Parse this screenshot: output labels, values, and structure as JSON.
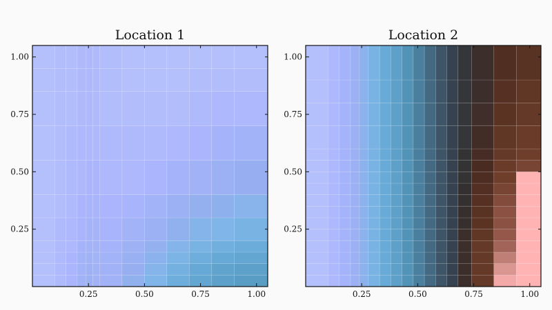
{
  "chart_data": [
    {
      "type": "heatmap",
      "title": "Location 1",
      "xlabel": "",
      "ylabel": "",
      "xlim": [
        0,
        1.05
      ],
      "ylim": [
        0,
        1.05
      ],
      "xticks": [
        "0.25",
        "0.50",
        "0.75",
        "1.00"
      ],
      "yticks": [
        "0.25",
        "0.50",
        "0.75",
        "1.00"
      ],
      "x_edges": [
        0,
        0.1,
        0.15,
        0.2,
        0.24,
        0.27,
        0.3,
        0.4,
        0.5,
        0.6,
        0.7,
        0.8,
        0.9,
        1.05
      ],
      "y_edges": [
        0,
        0.05,
        0.1,
        0.15,
        0.2,
        0.3,
        0.4,
        0.55,
        0.7,
        0.85,
        0.95,
        1.05
      ],
      "values": [
        [
          0.02,
          0.04,
          0.06,
          0.1,
          0.12,
          0.1,
          0.1,
          0.16,
          0.22,
          0.28,
          0.33,
          0.36,
          0.38
        ],
        [
          0.02,
          0.04,
          0.06,
          0.09,
          0.11,
          0.1,
          0.1,
          0.14,
          0.2,
          0.26,
          0.31,
          0.34,
          0.36
        ],
        [
          0.02,
          0.04,
          0.06,
          0.09,
          0.1,
          0.09,
          0.09,
          0.13,
          0.18,
          0.23,
          0.28,
          0.31,
          0.33
        ],
        [
          0.02,
          0.04,
          0.05,
          0.08,
          0.09,
          0.09,
          0.08,
          0.11,
          0.15,
          0.2,
          0.24,
          0.27,
          0.29
        ],
        [
          0.02,
          0.04,
          0.05,
          0.07,
          0.08,
          0.08,
          0.07,
          0.09,
          0.12,
          0.16,
          0.2,
          0.22,
          0.24
        ],
        [
          0.02,
          0.03,
          0.04,
          0.06,
          0.07,
          0.07,
          0.06,
          0.07,
          0.09,
          0.12,
          0.15,
          0.17,
          0.19
        ],
        [
          0.02,
          0.03,
          0.04,
          0.05,
          0.06,
          0.06,
          0.05,
          0.05,
          0.06,
          0.08,
          0.1,
          0.12,
          0.14
        ],
        [
          0.02,
          0.03,
          0.04,
          0.05,
          0.05,
          0.05,
          0.04,
          0.04,
          0.04,
          0.05,
          0.06,
          0.08,
          0.09
        ],
        [
          0.02,
          0.03,
          0.03,
          0.04,
          0.05,
          0.04,
          0.03,
          0.03,
          0.03,
          0.03,
          0.04,
          0.05,
          0.05
        ],
        [
          0.02,
          0.03,
          0.03,
          0.04,
          0.05,
          0.04,
          0.03,
          0.02,
          0.02,
          0.02,
          0.03,
          0.03,
          0.03
        ],
        [
          0.02,
          0.03,
          0.03,
          0.04,
          0.05,
          0.04,
          0.03,
          0.02,
          0.02,
          0.02,
          0.02,
          0.02,
          0.02
        ]
      ]
    },
    {
      "type": "heatmap",
      "title": "Location 2",
      "xlabel": "",
      "ylabel": "",
      "xlim": [
        0,
        1.05
      ],
      "ylim": [
        0,
        1.05
      ],
      "xticks": [
        "0.25",
        "0.50",
        "0.75",
        "1.00"
      ],
      "yticks": [
        "0.25",
        "0.50",
        "0.75",
        "1.00"
      ],
      "x_edges": [
        0,
        0.1,
        0.15,
        0.2,
        0.24,
        0.28,
        0.33,
        0.38,
        0.43,
        0.48,
        0.53,
        0.58,
        0.63,
        0.68,
        0.74,
        0.84,
        0.94,
        1.05
      ],
      "y_edges": [
        0,
        0.05,
        0.1,
        0.15,
        0.2,
        0.25,
        0.3,
        0.35,
        0.4,
        0.45,
        0.5,
        0.55,
        0.6,
        0.7,
        0.8,
        0.9,
        1.05
      ],
      "values": [
        [
          0.02,
          0.05,
          0.08,
          0.12,
          0.18,
          0.24,
          0.3,
          0.36,
          0.42,
          0.48,
          0.54,
          0.6,
          0.66,
          0.74,
          0.86,
          0.99,
          1.0
        ],
        [
          0.02,
          0.05,
          0.08,
          0.12,
          0.18,
          0.24,
          0.3,
          0.36,
          0.42,
          0.48,
          0.54,
          0.6,
          0.66,
          0.74,
          0.86,
          0.97,
          1.0
        ],
        [
          0.02,
          0.05,
          0.08,
          0.12,
          0.18,
          0.24,
          0.3,
          0.36,
          0.42,
          0.48,
          0.54,
          0.6,
          0.66,
          0.74,
          0.86,
          0.95,
          1.0
        ],
        [
          0.02,
          0.05,
          0.08,
          0.12,
          0.18,
          0.24,
          0.3,
          0.36,
          0.42,
          0.48,
          0.54,
          0.6,
          0.66,
          0.74,
          0.86,
          0.93,
          1.0
        ],
        [
          0.02,
          0.05,
          0.08,
          0.12,
          0.18,
          0.24,
          0.3,
          0.36,
          0.42,
          0.48,
          0.54,
          0.6,
          0.66,
          0.74,
          0.85,
          0.92,
          1.0
        ],
        [
          0.02,
          0.05,
          0.08,
          0.12,
          0.18,
          0.24,
          0.3,
          0.36,
          0.42,
          0.48,
          0.54,
          0.6,
          0.66,
          0.73,
          0.84,
          0.91,
          1.0
        ],
        [
          0.02,
          0.05,
          0.08,
          0.12,
          0.18,
          0.24,
          0.3,
          0.36,
          0.42,
          0.48,
          0.54,
          0.6,
          0.66,
          0.73,
          0.83,
          0.91,
          1.0
        ],
        [
          0.02,
          0.05,
          0.08,
          0.12,
          0.18,
          0.24,
          0.3,
          0.36,
          0.42,
          0.48,
          0.54,
          0.6,
          0.66,
          0.72,
          0.82,
          0.9,
          1.0
        ],
        [
          0.02,
          0.05,
          0.08,
          0.12,
          0.18,
          0.24,
          0.3,
          0.36,
          0.42,
          0.48,
          0.54,
          0.6,
          0.66,
          0.72,
          0.81,
          0.89,
          1.0
        ],
        [
          0.02,
          0.05,
          0.08,
          0.12,
          0.18,
          0.24,
          0.3,
          0.36,
          0.42,
          0.48,
          0.54,
          0.6,
          0.66,
          0.71,
          0.79,
          0.88,
          1.0
        ],
        [
          0.02,
          0.05,
          0.08,
          0.12,
          0.18,
          0.24,
          0.3,
          0.36,
          0.42,
          0.48,
          0.54,
          0.6,
          0.66,
          0.71,
          0.78,
          0.87,
          0.89
        ],
        [
          0.02,
          0.05,
          0.08,
          0.12,
          0.18,
          0.24,
          0.3,
          0.36,
          0.42,
          0.48,
          0.54,
          0.6,
          0.66,
          0.71,
          0.77,
          0.86,
          0.88
        ],
        [
          0.02,
          0.05,
          0.08,
          0.12,
          0.18,
          0.24,
          0.3,
          0.36,
          0.42,
          0.48,
          0.54,
          0.6,
          0.66,
          0.7,
          0.76,
          0.85,
          0.87
        ],
        [
          0.02,
          0.05,
          0.08,
          0.12,
          0.18,
          0.24,
          0.3,
          0.36,
          0.42,
          0.48,
          0.54,
          0.6,
          0.66,
          0.7,
          0.75,
          0.84,
          0.86
        ],
        [
          0.02,
          0.05,
          0.08,
          0.12,
          0.18,
          0.24,
          0.3,
          0.36,
          0.42,
          0.48,
          0.54,
          0.6,
          0.66,
          0.7,
          0.74,
          0.82,
          0.85
        ],
        [
          0.02,
          0.05,
          0.08,
          0.12,
          0.18,
          0.24,
          0.3,
          0.36,
          0.42,
          0.48,
          0.54,
          0.6,
          0.66,
          0.7,
          0.74,
          0.8,
          0.83
        ]
      ]
    }
  ],
  "colormap": {
    "stops": [
      [
        0.0,
        "#b9c5fb"
      ],
      [
        0.06,
        "#aab5fd"
      ],
      [
        0.14,
        "#97aff0"
      ],
      [
        0.22,
        "#7fb5e8"
      ],
      [
        0.3,
        "#68abd8"
      ],
      [
        0.4,
        "#5599c0"
      ],
      [
        0.5,
        "#477a96"
      ],
      [
        0.58,
        "#3f5b6e"
      ],
      [
        0.66,
        "#36424f"
      ],
      [
        0.72,
        "#33302f"
      ],
      [
        0.78,
        "#4a2b22"
      ],
      [
        0.84,
        "#5b3323"
      ],
      [
        0.88,
        "#6f3e2b"
      ],
      [
        0.92,
        "#94574a"
      ],
      [
        0.96,
        "#cd8c85"
      ],
      [
        1.0,
        "#ffb3b3"
      ]
    ],
    "grid_line_color": "#ffffff"
  }
}
